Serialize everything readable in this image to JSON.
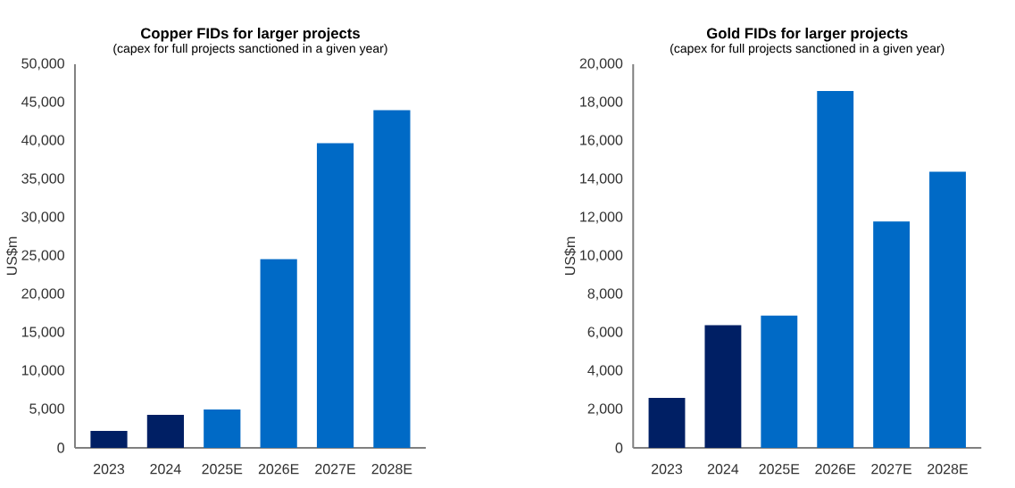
{
  "chart_data": [
    {
      "type": "bar",
      "title": "Copper FIDs for larger projects",
      "subtitle": "(capex for full projects sanctioned in a given year)",
      "ylabel": "US$m",
      "categories": [
        "2023",
        "2024",
        "2025E",
        "2026E",
        "2027E",
        "2028E"
      ],
      "values": [
        2200,
        4300,
        5000,
        24600,
        39700,
        44000
      ],
      "colors": [
        "#001f64",
        "#001f64",
        "#006ac6",
        "#006ac6",
        "#006ac6",
        "#006ac6"
      ],
      "ylim": [
        0,
        50000
      ],
      "yticks": [
        0,
        {
          "value": 5000,
          "label": "5,000"
        },
        {
          "value": 10000,
          "label": "10,000"
        },
        {
          "value": 15000,
          "label": "15,000"
        },
        {
          "value": 20000,
          "label": "20,000"
        },
        {
          "value": 25000,
          "label": "25,000"
        },
        {
          "value": 30000,
          "label": "30,000"
        },
        {
          "value": 35000,
          "label": "35,000"
        },
        {
          "value": 40000,
          "label": "40,000"
        },
        {
          "value": 45000,
          "label": "45,000"
        },
        {
          "value": 50000,
          "label": "50,000"
        }
      ]
    },
    {
      "type": "bar",
      "title": "Gold FIDs for larger projects",
      "subtitle": "(capex for full projects sanctioned in a given year)",
      "ylabel": "US$m",
      "categories": [
        "2023",
        "2024",
        "2025E",
        "2026E",
        "2027E",
        "2028E"
      ],
      "values": [
        2600,
        6400,
        6900,
        18600,
        11800,
        14400
      ],
      "colors": [
        "#001f64",
        "#001f64",
        "#006ac6",
        "#006ac6",
        "#006ac6",
        "#006ac6"
      ],
      "ylim": [
        0,
        20000
      ],
      "yticks": [
        0,
        {
          "value": 2000,
          "label": "2,000"
        },
        {
          "value": 4000,
          "label": "4,000"
        },
        {
          "value": 6000,
          "label": "6,000"
        },
        {
          "value": 8000,
          "label": "8,000"
        },
        {
          "value": 10000,
          "label": "10,000"
        },
        {
          "value": 12000,
          "label": "12,000"
        },
        {
          "value": 14000,
          "label": "14,000"
        },
        {
          "value": 16000,
          "label": "16,000"
        },
        {
          "value": 18000,
          "label": "18,000"
        },
        {
          "value": 20000,
          "label": "20,000"
        }
      ]
    }
  ]
}
